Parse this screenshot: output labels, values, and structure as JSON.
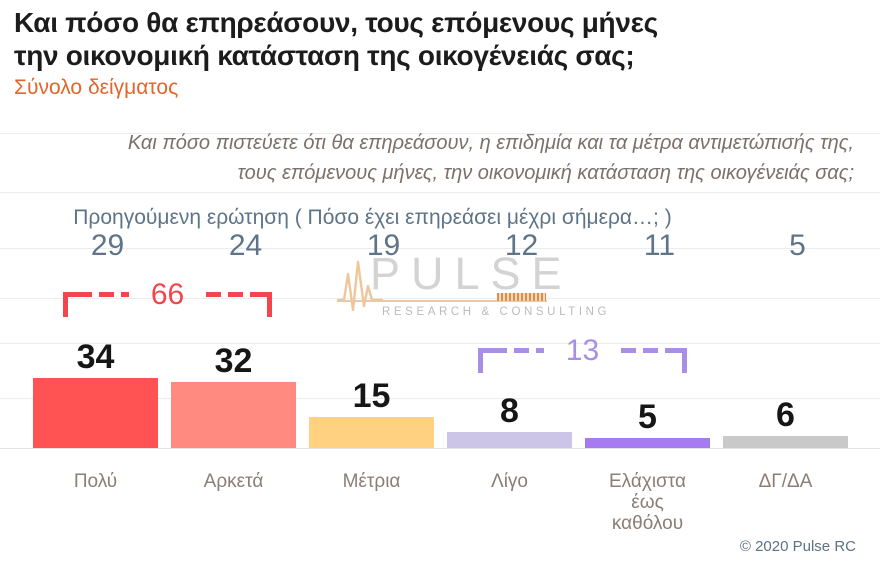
{
  "header": {
    "title": "Και πόσο θα επηρεάσουν, τους επόμενους μήνες\nτην οικονομική κατάσταση της οικογένειάς σας;",
    "sample_label": "Σύνολο δείγματος"
  },
  "question_note": "Και πόσο πιστεύετε ότι θα επηρεάσουν, η επιδημία και τα μέτρα αντιμετώπισής της,\nτους επόμενους μήνες, την οικονομική κατάσταση της οικογένειάς σας;",
  "previous_question": {
    "label": "Προηγούμενη ερώτηση ( Πόσο έχει επηρεάσει μέχρι σήμερα…; )",
    "values": [
      29,
      24,
      19,
      12,
      11,
      5
    ]
  },
  "chart_data": {
    "type": "bar",
    "title": "Και πόσο θα επηρεάσουν, τους επόμενους μήνες την οικονομική κατάσταση της οικογένειάς σας;",
    "subtitle": "Σύνολο δείγματος",
    "categories": [
      "Πολύ",
      "Αρκετά",
      "Μέτρια",
      "Λίγο",
      "Ελάχιστα έως καθόλου",
      "ΔΓ/ΔΑ"
    ],
    "categories_display": [
      "Πολύ",
      "Αρκετά",
      "Μέτρια",
      "Λίγο",
      "Ελάχιστα\nέως\nκαθόλου",
      "ΔΓ/ΔΑ"
    ],
    "values": [
      34,
      32,
      15,
      8,
      5,
      6
    ],
    "previous_values": [
      29,
      24,
      19,
      12,
      11,
      5
    ],
    "bar_colors": [
      "#ff5252",
      "#ff8a80",
      "#ffd180",
      "#cdc5e8",
      "#a57bef",
      "#c9c9c9"
    ],
    "groups": [
      {
        "label": "66",
        "value": 66,
        "span_categories": [
          "Πολύ",
          "Αρκετά"
        ],
        "color": "#f4454d"
      },
      {
        "label": "13",
        "value": 13,
        "span_categories": [
          "Λίγο",
          "Ελάχιστα έως καθόλου"
        ],
        "color": "#a88fe4"
      }
    ],
    "ylim": [
      0,
      34
    ],
    "grid": "horizontal-light",
    "legend": "none"
  },
  "watermark": {
    "name": "PULSE",
    "tagline": "RESEARCH & CONSULTING",
    "icons": [
      "heartbeat-icon"
    ]
  },
  "palette": {
    "accent_orange": "#e2652b",
    "slate_blue": "#5e7488",
    "taupe_label": "#8c7d75",
    "group_red": "#f4454d",
    "group_purple": "#a88fe4"
  },
  "footer": {
    "copyright": "© 2020 Pulse RC"
  }
}
